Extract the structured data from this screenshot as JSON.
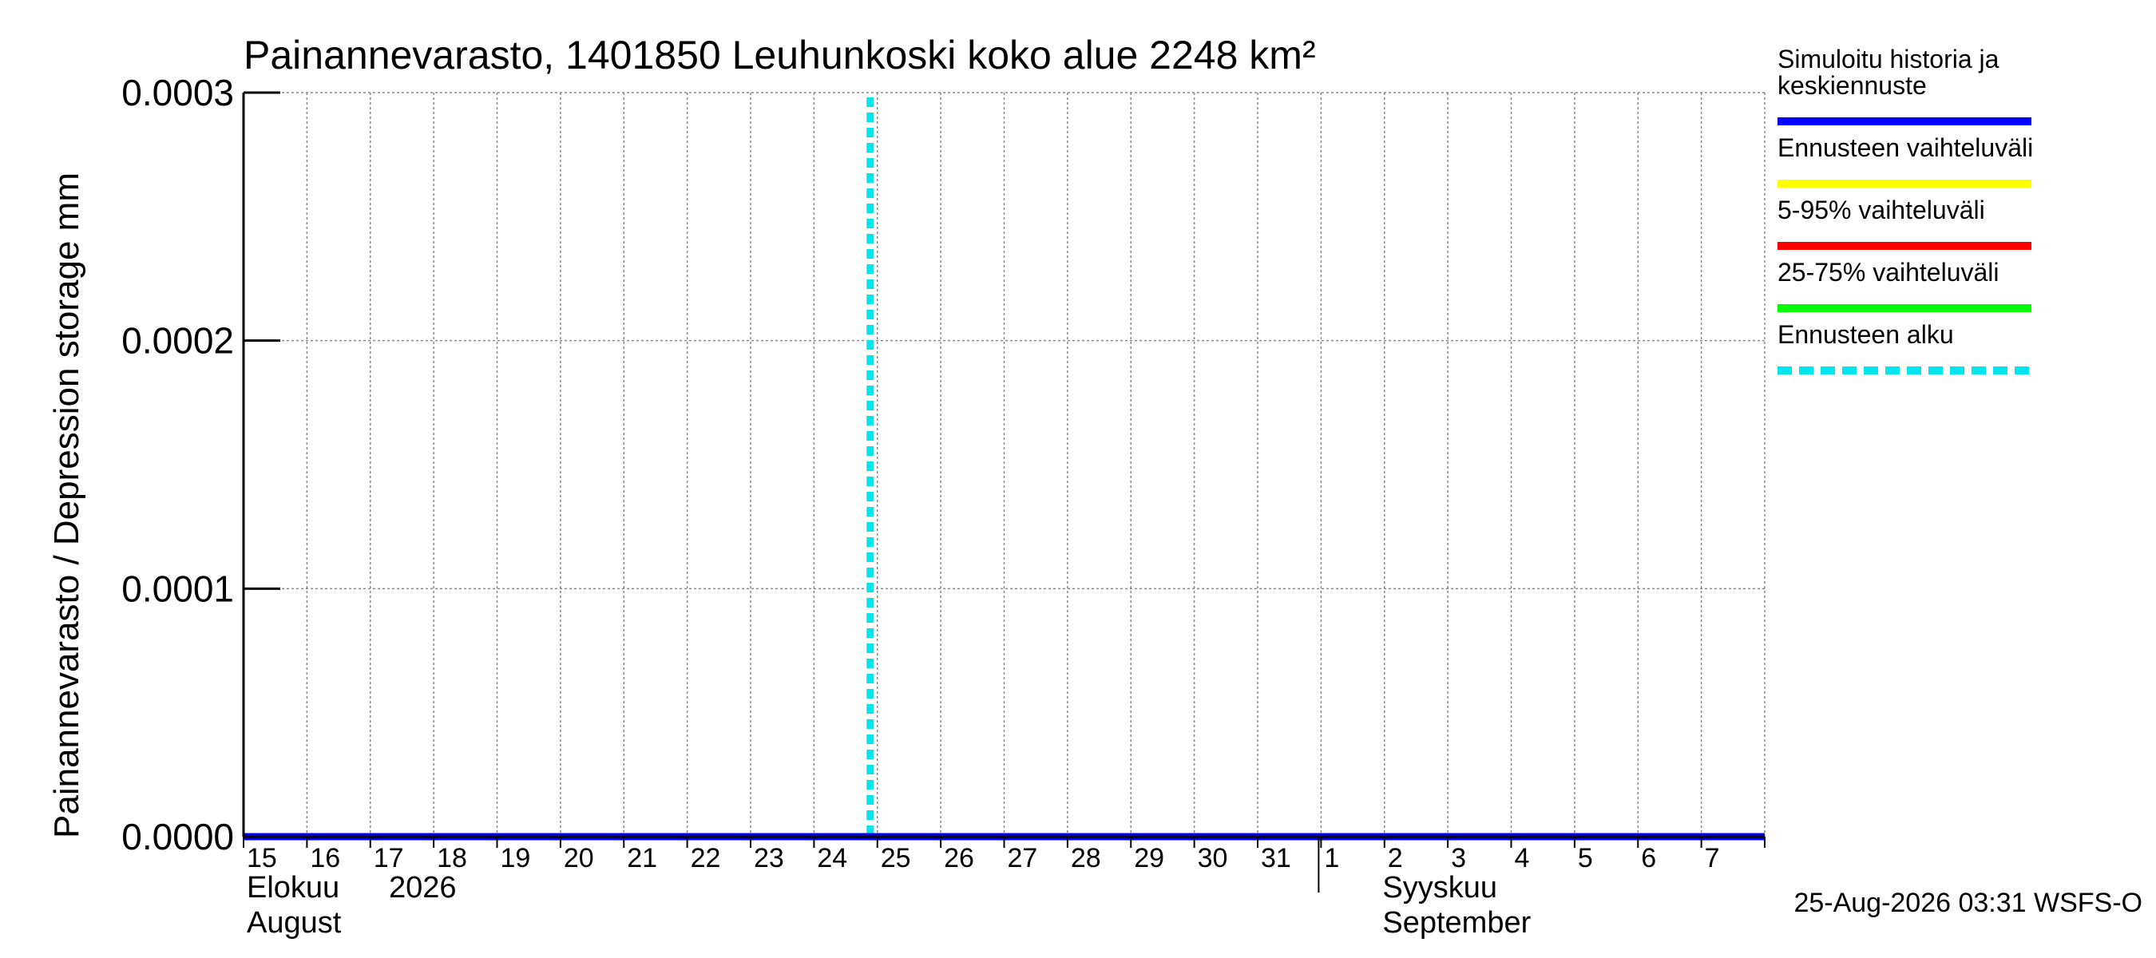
{
  "chart_data": {
    "type": "line",
    "title": "Painannevarasto, 1401850 Leuhunkoski koko alue 2248 km²",
    "ylabel": "Painannevarasto / Depression storage   mm",
    "ylim": [
      0,
      0.0003
    ],
    "yticks": [
      "0.0000",
      "0.0001",
      "0.0002",
      "0.0003"
    ],
    "x_start": "2026-08-15",
    "x_end": "2026-09-08",
    "x_day_labels": [
      "15",
      "16",
      "17",
      "18",
      "19",
      "20",
      "21",
      "22",
      "23",
      "24",
      "25",
      "26",
      "27",
      "28",
      "29",
      "30",
      "31",
      "1",
      "2",
      "3",
      "4",
      "5",
      "6",
      "7"
    ],
    "month_labels": [
      {
        "fi": "Elokuu",
        "en": "August",
        "year": "2026",
        "start": "2026-08-15"
      },
      {
        "fi": "Syyskuu",
        "en": "September",
        "year": "",
        "start": "2026-09-01"
      }
    ],
    "grid": true,
    "legend_placement": "right",
    "series": [
      {
        "name": "Simuloitu historia ja keskiennuste",
        "color": "#0000ff",
        "x": [
          "2026-08-15",
          "2026-09-08"
        ],
        "y": [
          0,
          0
        ]
      }
    ],
    "forecast_start": "2026-08-25",
    "legend": [
      {
        "label_lines": [
          "Simuloitu historia ja",
          "keskiennuste"
        ],
        "color": "#0000ff",
        "style": "solid"
      },
      {
        "label_lines": [
          "Ennusteen vaihteluväli"
        ],
        "color": "#ffff00",
        "style": "solid"
      },
      {
        "label_lines": [
          "5-95% vaihteluväli"
        ],
        "color": "#ff0000",
        "style": "solid"
      },
      {
        "label_lines": [
          "25-75% vaihteluväli"
        ],
        "color": "#00ff00",
        "style": "solid"
      },
      {
        "label_lines": [
          "Ennusteen alku"
        ],
        "color": "#00e5ee",
        "style": "dashed"
      }
    ],
    "footer": "25-Aug-2026 03:31 WSFS-O"
  }
}
